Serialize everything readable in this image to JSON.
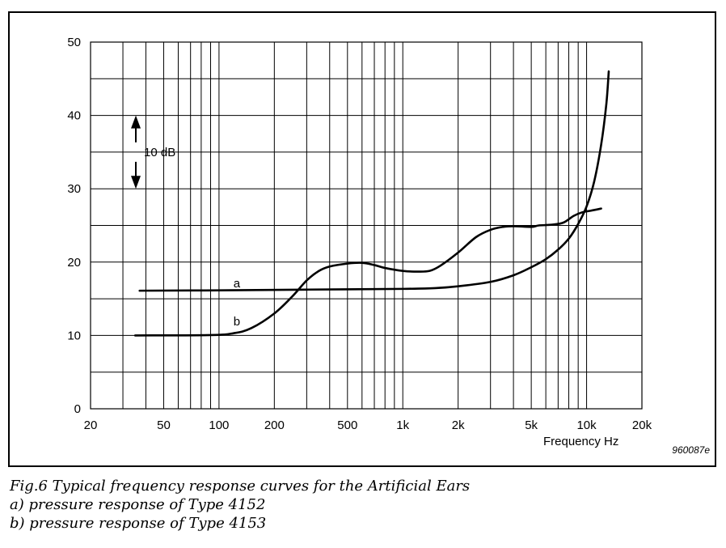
{
  "chart_data": {
    "type": "line",
    "xscale": "log",
    "xlim": [
      20,
      20000
    ],
    "ylim": [
      0,
      50
    ],
    "grid": true,
    "x_ticks": [
      {
        "value": 20,
        "label": "20"
      },
      {
        "value": 50,
        "label": "50"
      },
      {
        "value": 100,
        "label": "100"
      },
      {
        "value": 200,
        "label": "200"
      },
      {
        "value": 500,
        "label": "500"
      },
      {
        "value": 1000,
        "label": "1k"
      },
      {
        "value": 2000,
        "label": "2k"
      },
      {
        "value": 5000,
        "label": "5k"
      },
      {
        "value": 10000,
        "label": "10k"
      },
      {
        "value": 20000,
        "label": "20k"
      }
    ],
    "y_ticks": [
      {
        "value": 0,
        "label": "0"
      },
      {
        "value": 10,
        "label": "10"
      },
      {
        "value": 20,
        "label": "20"
      },
      {
        "value": 30,
        "label": "30"
      },
      {
        "value": 40,
        "label": "40"
      },
      {
        "value": 50,
        "label": "50"
      }
    ],
    "xlabel": "Frequency Hz",
    "ylabel": "",
    "figure_code": "960087e",
    "scale_marker": {
      "label": "10 dB",
      "from": 30,
      "to": 40
    },
    "series": [
      {
        "name": "a",
        "label_at": [
          120,
          17.1
        ],
        "points": [
          [
            37,
            16.1
          ],
          [
            100,
            16.15
          ],
          [
            300,
            16.25
          ],
          [
            1000,
            16.35
          ],
          [
            1500,
            16.45
          ],
          [
            2000,
            16.7
          ],
          [
            3000,
            17.3
          ],
          [
            4000,
            18.2
          ],
          [
            5000,
            19.3
          ],
          [
            6000,
            20.4
          ],
          [
            7000,
            21.7
          ],
          [
            8000,
            23.2
          ],
          [
            9000,
            25.2
          ],
          [
            10000,
            27.6
          ],
          [
            11000,
            31.0
          ],
          [
            12000,
            36.0
          ],
          [
            12800,
            41.5
          ],
          [
            13200,
            46.0
          ]
        ]
      },
      {
        "name": "b",
        "label_at": [
          120,
          11.9
        ],
        "points": [
          [
            35,
            10.0
          ],
          [
            90,
            10.05
          ],
          [
            120,
            10.3
          ],
          [
            150,
            11.0
          ],
          [
            200,
            13.0
          ],
          [
            250,
            15.3
          ],
          [
            300,
            17.5
          ],
          [
            350,
            18.8
          ],
          [
            400,
            19.4
          ],
          [
            500,
            19.8
          ],
          [
            600,
            19.9
          ],
          [
            700,
            19.6
          ],
          [
            800,
            19.2
          ],
          [
            1000,
            18.8
          ],
          [
            1200,
            18.7
          ],
          [
            1400,
            18.8
          ],
          [
            1600,
            19.5
          ],
          [
            2000,
            21.3
          ],
          [
            2500,
            23.4
          ],
          [
            3000,
            24.4
          ],
          [
            3500,
            24.8
          ],
          [
            4000,
            24.9
          ],
          [
            5000,
            24.8
          ],
          [
            5500,
            25.0
          ],
          [
            6500,
            25.1
          ],
          [
            7500,
            25.4
          ],
          [
            8500,
            26.3
          ],
          [
            9500,
            26.8
          ],
          [
            10500,
            27.0
          ],
          [
            12000,
            27.3
          ]
        ]
      }
    ]
  },
  "caption": {
    "line1": "Fig.6  Typical frequency response curves for the Artificial Ears",
    "line2": "a) pressure response of Type 4152",
    "line3": "b) pressure response of Type 4153"
  }
}
